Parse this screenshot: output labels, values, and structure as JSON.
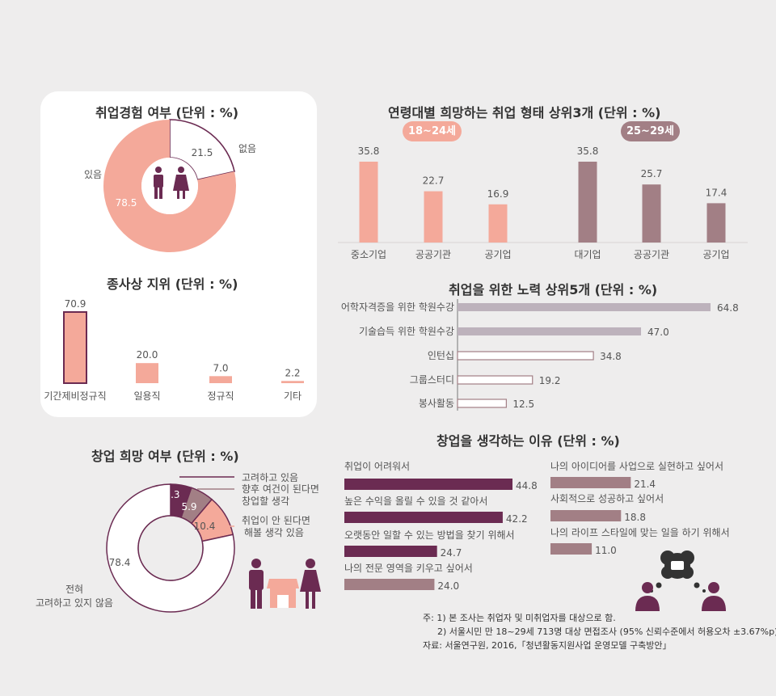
{
  "colors": {
    "salmon": "#f4a99a",
    "plum": "#6b2b52",
    "mauve": "#a27f85",
    "lavender": "#bdb2bc",
    "outline": "#6b2b52",
    "white": "#ffffff",
    "badge_young": "#f4a99a",
    "badge_old": "#a27f85"
  },
  "icons": {
    "people": "man-woman-icon",
    "shop": "shop-awning-icon",
    "thinking": "thought-bubble-people-icon"
  },
  "chart_data": [
    {
      "id": "employment-experience",
      "type": "pie",
      "title": "취업경험 여부 (단위 : %)",
      "slices": [
        {
          "label": "없음",
          "value": 21.5,
          "value_label": "21.5"
        },
        {
          "label": "있음",
          "value": 78.5,
          "value_label": "78.5"
        }
      ]
    },
    {
      "id": "employment-status",
      "type": "bar",
      "title": "종사상 지위 (단위 : %)",
      "categories": [
        "기간제비정규직",
        "일용직",
        "정규직",
        "기타"
      ],
      "values": [
        70.9,
        20.0,
        7.0,
        2.2
      ],
      "value_labels": [
        "70.9",
        "20.0",
        "7.0",
        "2.2"
      ],
      "ylim": [
        0,
        70.9
      ]
    },
    {
      "id": "startup-intention",
      "type": "pie",
      "title": "창업 희망 여부 (단위 : %)",
      "slices": [
        {
          "label": "고려하고 있음",
          "value": 5.3,
          "value_label": "5.3"
        },
        {
          "label": "향후 여건이 된다면 창업할 생각",
          "value": 5.9,
          "value_label": "5.9"
        },
        {
          "label": "취업이 안 된다면 해볼 생각 있음",
          "value": 10.4,
          "value_label": "10.4"
        },
        {
          "label": "전혀 고려하고 있지 않음",
          "value": 78.4,
          "value_label": "78.4"
        }
      ],
      "legend_lines": [
        [
          "고려하고 있음"
        ],
        [
          "향후 여건이 된다면",
          "창업할 생각"
        ],
        [
          "취업이 안 된다면",
          "해볼 생각 있음"
        ]
      ],
      "bottom_label_lines": [
        "전혀",
        "고려하고 있지 않음"
      ]
    },
    {
      "id": "preferred-employment",
      "type": "bar",
      "title": "연령대별 희망하는 취업 형태 상위3개 (단위 : %)",
      "groups": [
        {
          "name": "18~24세",
          "categories": [
            "중소기업",
            "공공기관",
            "공기업"
          ],
          "values": [
            35.8,
            22.7,
            16.9
          ],
          "value_labels": [
            "35.8",
            "22.7",
            "16.9"
          ]
        },
        {
          "name": "25~29세",
          "categories": [
            "대기업",
            "공공기관",
            "공기업"
          ],
          "values": [
            35.8,
            25.7,
            17.4
          ],
          "value_labels": [
            "35.8",
            "25.7",
            "17.4"
          ]
        }
      ],
      "ylim": [
        0,
        35.8
      ]
    },
    {
      "id": "job-efforts",
      "type": "bar",
      "orientation": "horizontal",
      "title": "취업을 위한 노력 상위5개 (단위 : %)",
      "categories": [
        "어학자격증을 위한 학원수강",
        "기술습득 위한 학원수강",
        "인턴십",
        "그룹스터디",
        "봉사활동"
      ],
      "values": [
        64.8,
        47.0,
        34.8,
        19.2,
        12.5
      ],
      "value_labels": [
        "64.8",
        "47.0",
        "34.8",
        "19.2",
        "12.5"
      ],
      "xlim": [
        0,
        64.8
      ]
    },
    {
      "id": "startup-reasons",
      "type": "bar",
      "orientation": "horizontal",
      "title": "창업을 생각하는 이유 (단위 : %)",
      "categories": [
        "취업이 어려워서",
        "높은 수익을 올릴 수 있을 것 같아서",
        "오랫동안 일할 수 있는 방법을 찾기 위해서",
        "나의 전문 영역을 키우고 싶어서",
        "나의 아이디어를 사업으로 실현하고 싶어서",
        "사회적으로 성공하고 싶어서",
        "나의 라이프 스타일에 맞는 일을 하기 위해서"
      ],
      "values": [
        44.8,
        42.2,
        24.7,
        24.0,
        21.4,
        18.8,
        11.0
      ],
      "value_labels": [
        "44.8",
        "42.2",
        "24.7",
        "24.0",
        "21.4",
        "18.8",
        "11.0"
      ],
      "xlim": [
        0,
        44.8
      ]
    }
  ],
  "notes": {
    "line1": "주: 1) 본 조사는 취업자 및 미취업자를 대상으로 함.",
    "line2": "2) 서울시민 만 18~29세 713명 대상 면접조사 (95% 신뢰수준에서 허용오차 ±3.67%p)",
    "source": "자료: 서울연구원, 2016,「청년활동지원사업 운영모델 구축방안」"
  }
}
